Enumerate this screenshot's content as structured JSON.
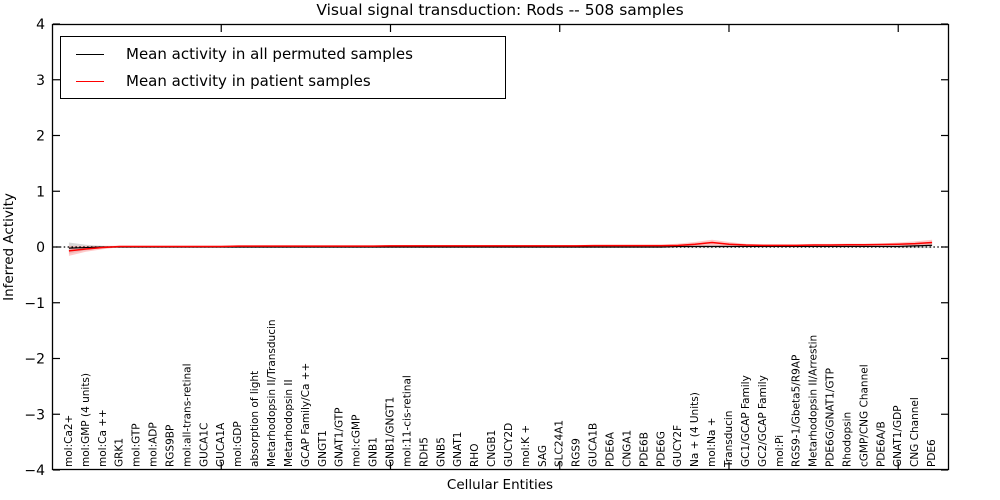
{
  "chart_data": {
    "type": "line",
    "title": "Visual signal transduction: Rods -- 508 samples",
    "xlabel": "Cellular Entities",
    "ylabel": "Inferred Activity",
    "ylim": [
      -4,
      4
    ],
    "yticks": [
      -4,
      -3,
      -2,
      -1,
      0,
      1,
      2,
      3,
      4
    ],
    "xticks": [
      10,
      20,
      30,
      40,
      50
    ],
    "grid": false,
    "legend_position": "upper left",
    "zero_line": {
      "style": "dotted",
      "color": "#000000",
      "y": 0
    },
    "categories": [
      "mol:Ca2+",
      "mol:GMP (4 units)",
      "mol:Ca ++",
      "GRK1",
      "mol:GTP",
      "mol:ADP",
      "RGS9BP",
      "mol:all-trans-retinal",
      "GUCA1C",
      "GUCA1A",
      "mol:GDP",
      "absorption of light",
      "Metarhodopsin II/Transducin",
      "Metarhodopsin II",
      "GCAP Family/Ca ++",
      "GNGT1",
      "GNAT1/GTP",
      "mol:cGMP",
      "GNB1",
      "GNB1/GNGT1",
      "mol:11-cis-retinal",
      "RDH5",
      "GNB5",
      "GNAT1",
      "RHO",
      "CNGB1",
      "GUCY2D",
      "mol:K +",
      "SAG",
      "SLC24A1",
      "RGS9",
      "GUCA1B",
      "PDE6A",
      "CNGA1",
      "PDE6B",
      "PDE6G",
      "GUCY2F",
      "Na + (4 Units)",
      "mol:Na +",
      "Transducin",
      "GC1/GCAP Family",
      "GC2/GCAP Family",
      "mol:Pi",
      "RGS9-1/Gbeta5/R9AP",
      "Metarhodopsin II/Arrestin",
      "PDE6G/GNAT1/GTP",
      "Rhodopsin",
      "cGMP/CNG Channel",
      "PDE6A/B",
      "GNAT1/GDP",
      "CNG Channel",
      "PDE6"
    ],
    "series": [
      {
        "name": "Mean activity in all permuted samples",
        "color": "#000000",
        "band_color": "#b8b8b8",
        "values": [
          -0.02,
          -0.01,
          0,
          0,
          0,
          0,
          0,
          0,
          0,
          0,
          0,
          0,
          0,
          0,
          0,
          0,
          0,
          0,
          0,
          0,
          0,
          0,
          0,
          0,
          0,
          0,
          0,
          0,
          0,
          0,
          0,
          0,
          0,
          0,
          0,
          0,
          0.01,
          0.01,
          0.01,
          0.01,
          0.01,
          0.01,
          0.01,
          0.01,
          0.01,
          0.01,
          0.01,
          0.01,
          0.01,
          0.01,
          0.02,
          0.03
        ],
        "band": [
          0.1,
          0.05,
          0.02,
          0.015,
          0.015,
          0.015,
          0.015,
          0.015,
          0.015,
          0.015,
          0.015,
          0.015,
          0.015,
          0.015,
          0.015,
          0.015,
          0.015,
          0.015,
          0.015,
          0.015,
          0.015,
          0.015,
          0.015,
          0.015,
          0.015,
          0.015,
          0.015,
          0.015,
          0.015,
          0.015,
          0.015,
          0.015,
          0.015,
          0.015,
          0.015,
          0.015,
          0.025,
          0.03,
          0.03,
          0.025,
          0.02,
          0.02,
          0.02,
          0.02,
          0.02,
          0.02,
          0.02,
          0.02,
          0.02,
          0.03,
          0.04,
          0.05
        ]
      },
      {
        "name": "Mean activity in patient samples",
        "color": "#ff0000",
        "band_color": "#ffa0a0",
        "values": [
          -0.07,
          -0.035,
          -0.01,
          0.01,
          0.01,
          0.01,
          0.01,
          0.01,
          0.01,
          0.01,
          0.015,
          0.015,
          0.015,
          0.015,
          0.015,
          0.015,
          0.015,
          0.015,
          0.015,
          0.02,
          0.02,
          0.02,
          0.02,
          0.02,
          0.02,
          0.02,
          0.02,
          0.02,
          0.02,
          0.02,
          0.02,
          0.025,
          0.025,
          0.025,
          0.025,
          0.025,
          0.03,
          0.05,
          0.08,
          0.05,
          0.035,
          0.03,
          0.03,
          0.03,
          0.035,
          0.035,
          0.04,
          0.04,
          0.045,
          0.05,
          0.06,
          0.08
        ],
        "band": [
          0.09,
          0.05,
          0.03,
          0.015,
          0.015,
          0.015,
          0.015,
          0.015,
          0.015,
          0.015,
          0.015,
          0.015,
          0.015,
          0.015,
          0.015,
          0.015,
          0.015,
          0.015,
          0.015,
          0.015,
          0.015,
          0.015,
          0.015,
          0.015,
          0.015,
          0.015,
          0.015,
          0.015,
          0.015,
          0.015,
          0.015,
          0.015,
          0.015,
          0.015,
          0.015,
          0.015,
          0.03,
          0.04,
          0.05,
          0.04,
          0.02,
          0.02,
          0.02,
          0.02,
          0.02,
          0.02,
          0.02,
          0.02,
          0.02,
          0.03,
          0.04,
          0.05
        ]
      }
    ]
  }
}
